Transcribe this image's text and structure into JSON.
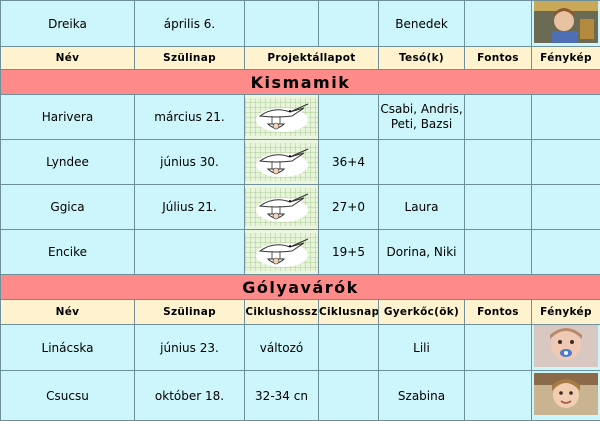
{
  "top_row": {
    "name": "Dreika",
    "birthday": "április 6.",
    "project": "",
    "extra": "",
    "sibling": "Benedek",
    "important": "",
    "photo_icon": "child-photo-icon"
  },
  "header1": {
    "name": "Név",
    "birthday": "Szülinap",
    "project": "Projektállapot",
    "sibling": "Tesó(k)",
    "important": "Fontos",
    "photo": "Fénykép"
  },
  "section_kismamik": "Kismamik",
  "kismamik": [
    {
      "name": "Harivera",
      "birthday": "március 21.",
      "week": "",
      "sibling": "Csabi, Andris, Peti, Bazsi",
      "important": ""
    },
    {
      "name": "Lyndee",
      "birthday": "június 30.",
      "week": "36+4",
      "sibling": "",
      "important": ""
    },
    {
      "name": "Ggica",
      "birthday": "Július 21.",
      "week": "27+0",
      "sibling": "Laura",
      "important": ""
    },
    {
      "name": "Encike",
      "birthday": "",
      "week": "19+5",
      "sibling": "Dorina, Niki",
      "important": ""
    }
  ],
  "stork_icon": "stork-carrying-baby-icon",
  "section_golyavarok": "Gólyavárók",
  "header2": {
    "name": "Név",
    "birthday": "Szülinap",
    "cycle_length": "Ciklushossz",
    "cycle_day": "Ciklusnap",
    "children": "Gyerkőc(ök)",
    "important": "Fontos",
    "photo": "Fénykép"
  },
  "golyavarok": [
    {
      "name": "Linácska",
      "birthday": "június 23.",
      "cycle_length": "változó",
      "cycle_day": "",
      "children": "Lili",
      "important": "",
      "photo_icon": "toddler-pacifier-photo-icon"
    },
    {
      "name": "Csucsu",
      "birthday": "október 18.",
      "cycle_length": "32-34 cn",
      "cycle_day": "",
      "children": "Szabina",
      "important": "",
      "photo_icon": "girl-photo-icon"
    }
  ]
}
